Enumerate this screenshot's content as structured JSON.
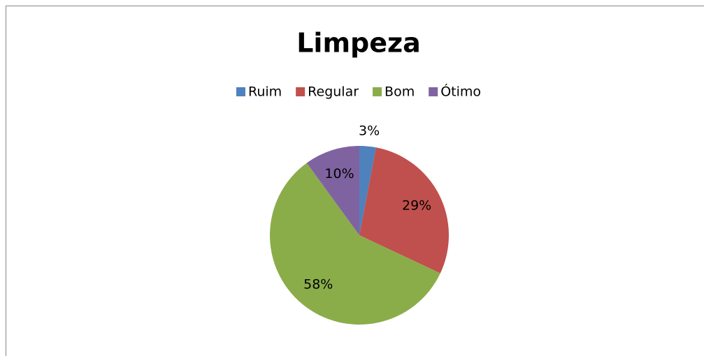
{
  "chart_data": {
    "type": "pie",
    "title": "Limpeza",
    "categories": [
      "Ruim",
      "Regular",
      "Bom",
      "Ótimo"
    ],
    "values": [
      3,
      29,
      58,
      10
    ],
    "value_labels": [
      "3%",
      "29%",
      "58%",
      "10%"
    ],
    "colors": [
      "#4f81bd",
      "#c0504d",
      "#8aad4a",
      "#7f63a1"
    ],
    "legend": "top"
  }
}
